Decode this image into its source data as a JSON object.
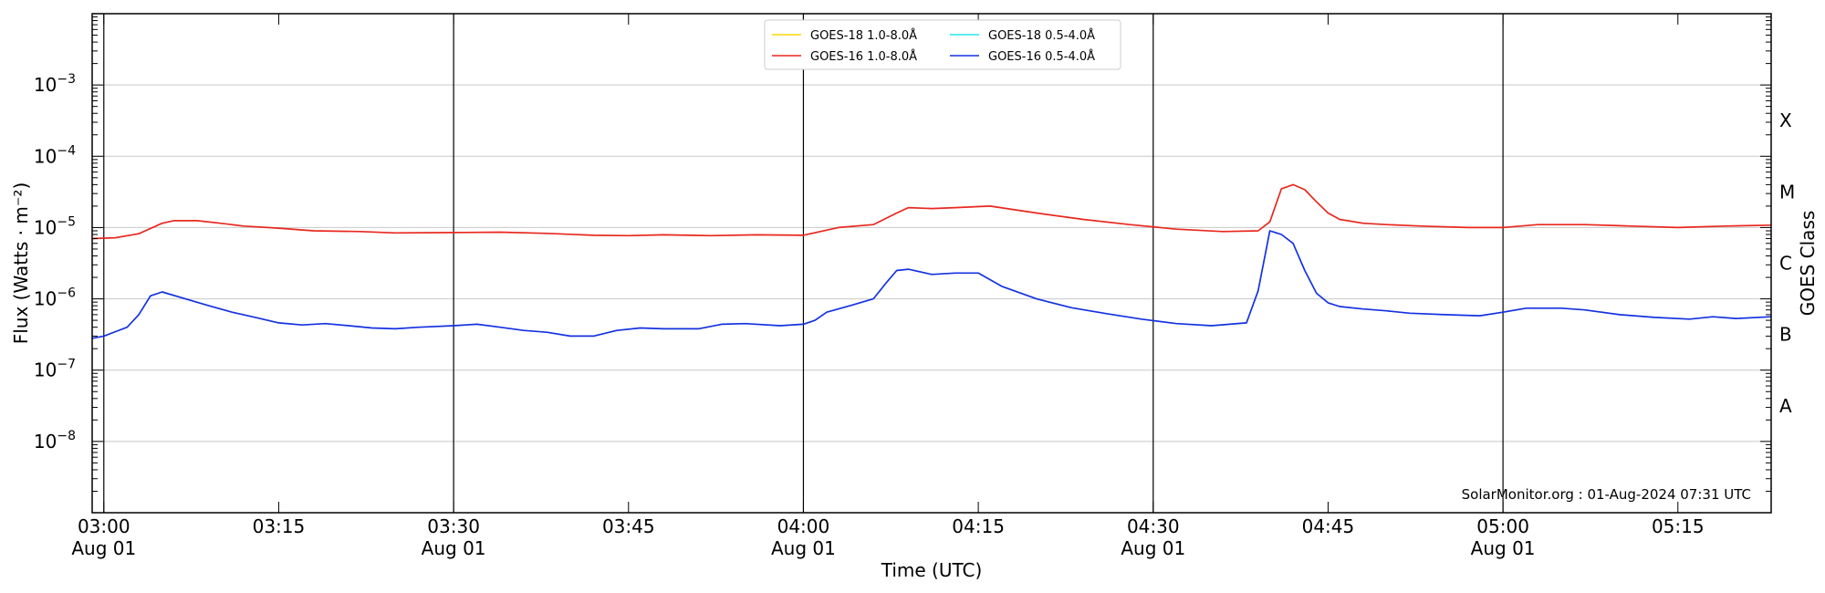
{
  "chart_data": {
    "type": "line",
    "xlabel": "Time (UTC)",
    "ylabel": "Flux (Watts · m⁻²)",
    "ylabel_right": "GOES Class",
    "x_range": [
      "02:59",
      "05:23"
    ],
    "y_range": [
      1e-09,
      0.01
    ],
    "y_scale": "log",
    "grid": "horizontal",
    "legend_position": "top-center",
    "y_ticks": [
      {
        "value": 1e-08,
        "base": "10",
        "exp": "−8"
      },
      {
        "value": 1e-07,
        "base": "10",
        "exp": "−7"
      },
      {
        "value": 1e-06,
        "base": "10",
        "exp": "−6"
      },
      {
        "value": 1e-05,
        "base": "10",
        "exp": "−5"
      },
      {
        "value": 0.0001,
        "base": "10",
        "exp": "−4"
      },
      {
        "value": 0.001,
        "base": "10",
        "exp": "−3"
      }
    ],
    "class_labels": [
      {
        "label": "A",
        "value": 3.16e-08
      },
      {
        "label": "B",
        "value": 3.16e-07
      },
      {
        "label": "C",
        "value": 3.16e-06
      },
      {
        "label": "M",
        "value": 3.16e-05
      },
      {
        "label": "X",
        "value": 0.000316
      }
    ],
    "x_ticks": [
      {
        "time": "03:00",
        "label": "03:00",
        "date": "Aug 01",
        "major": true
      },
      {
        "time": "03:15",
        "label": "03:15",
        "date": "",
        "major": false
      },
      {
        "time": "03:30",
        "label": "03:30",
        "date": "Aug 01",
        "major": true
      },
      {
        "time": "03:45",
        "label": "03:45",
        "date": "",
        "major": false
      },
      {
        "time": "04:00",
        "label": "04:00",
        "date": "Aug 01",
        "major": true
      },
      {
        "time": "04:15",
        "label": "04:15",
        "date": "",
        "major": false
      },
      {
        "time": "04:30",
        "label": "04:30",
        "date": "Aug 01",
        "major": true
      },
      {
        "time": "04:45",
        "label": "04:45",
        "date": "",
        "major": false
      },
      {
        "time": "05:00",
        "label": "05:00",
        "date": "Aug 01",
        "major": true
      },
      {
        "time": "05:15",
        "label": "05:15",
        "date": "",
        "major": false
      }
    ],
    "credit": "SolarMonitor.org : 01-Aug-2024 07:31 UTC",
    "legend": [
      {
        "name": "GOES-18 1.0-8.0Å",
        "color": "#ffd500"
      },
      {
        "name": "GOES-16 1.0-8.0Å",
        "color": "#e8281e"
      },
      {
        "name": "GOES-18 0.5-4.0Å",
        "color": "#22e6ee"
      },
      {
        "name": "GOES-16 0.5-4.0Å",
        "color": "#1432e0"
      }
    ],
    "series": [
      {
        "name": "GOES-16 1.0-8.0Å",
        "color": "#e8281e",
        "points": [
          [
            "02:59",
            7e-06
          ],
          [
            "03:01",
            7.2e-06
          ],
          [
            "03:03",
            8.2e-06
          ],
          [
            "03:05",
            1.15e-05
          ],
          [
            "03:06",
            1.25e-05
          ],
          [
            "03:08",
            1.25e-05
          ],
          [
            "03:10",
            1.15e-05
          ],
          [
            "03:12",
            1.05e-05
          ],
          [
            "03:15",
            9.8e-06
          ],
          [
            "03:18",
            9e-06
          ],
          [
            "03:22",
            8.8e-06
          ],
          [
            "03:25",
            8.4e-06
          ],
          [
            "03:30",
            8.5e-06
          ],
          [
            "03:34",
            8.6e-06
          ],
          [
            "03:38",
            8.3e-06
          ],
          [
            "03:42",
            7.8e-06
          ],
          [
            "03:45",
            7.7e-06
          ],
          [
            "03:48",
            7.9e-06
          ],
          [
            "03:52",
            7.7e-06
          ],
          [
            "03:56",
            7.9e-06
          ],
          [
            "04:00",
            7.8e-06
          ],
          [
            "04:03",
            1e-05
          ],
          [
            "04:06",
            1.1e-05
          ],
          [
            "04:08",
            1.6e-05
          ],
          [
            "04:09",
            1.9e-05
          ],
          [
            "04:11",
            1.85e-05
          ],
          [
            "04:13",
            1.9e-05
          ],
          [
            "04:16",
            2e-05
          ],
          [
            "04:20",
            1.6e-05
          ],
          [
            "04:24",
            1.3e-05
          ],
          [
            "04:28",
            1.1e-05
          ],
          [
            "04:32",
            9.5e-06
          ],
          [
            "04:36",
            8.8e-06
          ],
          [
            "04:39",
            9e-06
          ],
          [
            "04:40",
            1.2e-05
          ],
          [
            "04:41",
            3.5e-05
          ],
          [
            "04:42",
            4e-05
          ],
          [
            "04:43",
            3.4e-05
          ],
          [
            "04:44",
            2.3e-05
          ],
          [
            "04:45",
            1.6e-05
          ],
          [
            "04:46",
            1.3e-05
          ],
          [
            "04:48",
            1.15e-05
          ],
          [
            "04:50",
            1.1e-05
          ],
          [
            "04:53",
            1.05e-05
          ],
          [
            "04:57",
            1e-05
          ],
          [
            "05:00",
            1e-05
          ],
          [
            "05:03",
            1.1e-05
          ],
          [
            "05:07",
            1.1e-05
          ],
          [
            "05:11",
            1.05e-05
          ],
          [
            "05:15",
            1e-05
          ],
          [
            "05:19",
            1.05e-05
          ],
          [
            "05:23",
            1.08e-05
          ]
        ]
      },
      {
        "name": "GOES-16 0.5-4.0Å",
        "color": "#1432e0",
        "points": [
          [
            "02:59",
            2.8e-07
          ],
          [
            "03:00",
            3e-07
          ],
          [
            "03:02",
            4e-07
          ],
          [
            "03:03",
            6e-07
          ],
          [
            "03:04",
            1.1e-06
          ],
          [
            "03:05",
            1.25e-06
          ],
          [
            "03:07",
            1e-06
          ],
          [
            "03:09",
            8e-07
          ],
          [
            "03:11",
            6.5e-07
          ],
          [
            "03:13",
            5.5e-07
          ],
          [
            "03:15",
            4.6e-07
          ],
          [
            "03:17",
            4.3e-07
          ],
          [
            "03:19",
            4.5e-07
          ],
          [
            "03:21",
            4.2e-07
          ],
          [
            "03:23",
            3.9e-07
          ],
          [
            "03:25",
            3.8e-07
          ],
          [
            "03:27",
            4e-07
          ],
          [
            "03:30",
            4.2e-07
          ],
          [
            "03:32",
            4.4e-07
          ],
          [
            "03:34",
            4e-07
          ],
          [
            "03:36",
            3.6e-07
          ],
          [
            "03:38",
            3.4e-07
          ],
          [
            "03:40",
            3e-07
          ],
          [
            "03:42",
            3e-07
          ],
          [
            "03:44",
            3.6e-07
          ],
          [
            "03:46",
            3.9e-07
          ],
          [
            "03:48",
            3.8e-07
          ],
          [
            "03:51",
            3.8e-07
          ],
          [
            "03:53",
            4.4e-07
          ],
          [
            "03:55",
            4.5e-07
          ],
          [
            "03:58",
            4.2e-07
          ],
          [
            "04:00",
            4.4e-07
          ],
          [
            "04:01",
            5e-07
          ],
          [
            "04:02",
            6.5e-07
          ],
          [
            "04:04",
            8e-07
          ],
          [
            "04:06",
            1e-06
          ],
          [
            "04:07",
            1.6e-06
          ],
          [
            "04:08",
            2.5e-06
          ],
          [
            "04:09",
            2.6e-06
          ],
          [
            "04:11",
            2.2e-06
          ],
          [
            "04:13",
            2.3e-06
          ],
          [
            "04:15",
            2.3e-06
          ],
          [
            "04:17",
            1.5e-06
          ],
          [
            "04:20",
            1e-06
          ],
          [
            "04:23",
            7.5e-07
          ],
          [
            "04:26",
            6.2e-07
          ],
          [
            "04:29",
            5.2e-07
          ],
          [
            "04:32",
            4.5e-07
          ],
          [
            "04:35",
            4.2e-07
          ],
          [
            "04:38",
            4.6e-07
          ],
          [
            "04:39",
            1.3e-06
          ],
          [
            "04:40",
            9e-06
          ],
          [
            "04:41",
            8e-06
          ],
          [
            "04:42",
            6e-06
          ],
          [
            "04:43",
            2.5e-06
          ],
          [
            "04:44",
            1.2e-06
          ],
          [
            "04:45",
            8.8e-07
          ],
          [
            "04:46",
            7.8e-07
          ],
          [
            "04:48",
            7.2e-07
          ],
          [
            "04:50",
            6.8e-07
          ],
          [
            "04:52",
            6.3e-07
          ],
          [
            "04:55",
            6e-07
          ],
          [
            "04:58",
            5.8e-07
          ],
          [
            "05:00",
            6.5e-07
          ],
          [
            "05:02",
            7.4e-07
          ],
          [
            "05:05",
            7.4e-07
          ],
          [
            "05:07",
            7e-07
          ],
          [
            "05:10",
            6e-07
          ],
          [
            "05:13",
            5.5e-07
          ],
          [
            "05:16",
            5.2e-07
          ],
          [
            "05:18",
            5.6e-07
          ],
          [
            "05:20",
            5.3e-07
          ],
          [
            "05:23",
            5.6e-07
          ]
        ]
      }
    ]
  }
}
